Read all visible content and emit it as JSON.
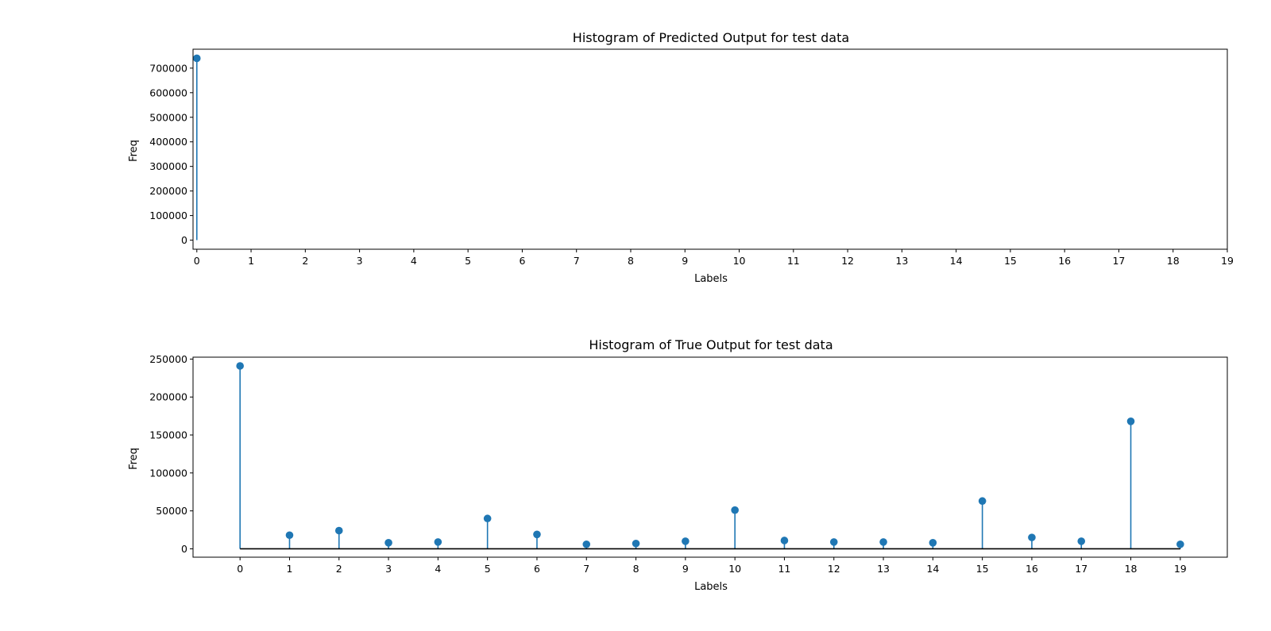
{
  "chart_data": [
    {
      "type": "stem",
      "title": "Histogram of Predicted Output for test data",
      "xlabel": "Labels",
      "ylabel": "Freq",
      "x_ticks": [
        "0",
        "1",
        "2",
        "3",
        "4",
        "5",
        "6",
        "7",
        "8",
        "9",
        "10",
        "11",
        "12",
        "13",
        "14",
        "15",
        "16",
        "17",
        "18",
        "19"
      ],
      "y_ticks": [
        "0",
        "100000",
        "200000",
        "300000",
        "400000",
        "500000",
        "600000",
        "700000"
      ],
      "xlim": [
        -0.07,
        19
      ],
      "ylim": [
        -37000,
        777000
      ],
      "x": [
        0
      ],
      "values": [
        740000
      ],
      "baseline": false,
      "color": "#1f77b4"
    },
    {
      "type": "stem",
      "title": "Histogram of True Output for test data",
      "xlabel": "Labels",
      "ylabel": "Freq",
      "x_ticks": [
        "0",
        "1",
        "2",
        "3",
        "4",
        "5",
        "6",
        "7",
        "8",
        "9",
        "10",
        "11",
        "12",
        "13",
        "14",
        "15",
        "16",
        "17",
        "18",
        "19"
      ],
      "y_ticks": [
        "0",
        "50000",
        "100000",
        "150000",
        "200000",
        "250000"
      ],
      "xlim": [
        -0.95,
        19.95
      ],
      "ylim": [
        -11000,
        252500
      ],
      "x": [
        0,
        1,
        2,
        3,
        4,
        5,
        6,
        7,
        8,
        9,
        10,
        11,
        12,
        13,
        14,
        15,
        16,
        17,
        18,
        19
      ],
      "values": [
        241000,
        18000,
        24000,
        8000,
        9000,
        40000,
        19000,
        6000,
        7000,
        10000,
        51000,
        11000,
        9000,
        9000,
        8000,
        63000,
        15000,
        10000,
        168000,
        6000
      ],
      "baseline": true,
      "color": "#1f77b4"
    }
  ]
}
